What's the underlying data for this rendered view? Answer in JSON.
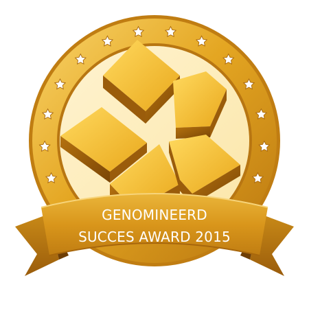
{
  "award": {
    "line1": "GENOMINEERD",
    "line2": "SUCCES AWARD 2015"
  },
  "stars": {
    "count": 14,
    "icon": "star-icon"
  },
  "emblem": {
    "icon": "stacked-cubes-icon"
  },
  "colors": {
    "gold_light": "#f6c744",
    "gold_mid": "#e3a51f",
    "gold_dark": "#a8670c",
    "gold_deep": "#7a4505",
    "ribbon_text": "#ffffff"
  }
}
